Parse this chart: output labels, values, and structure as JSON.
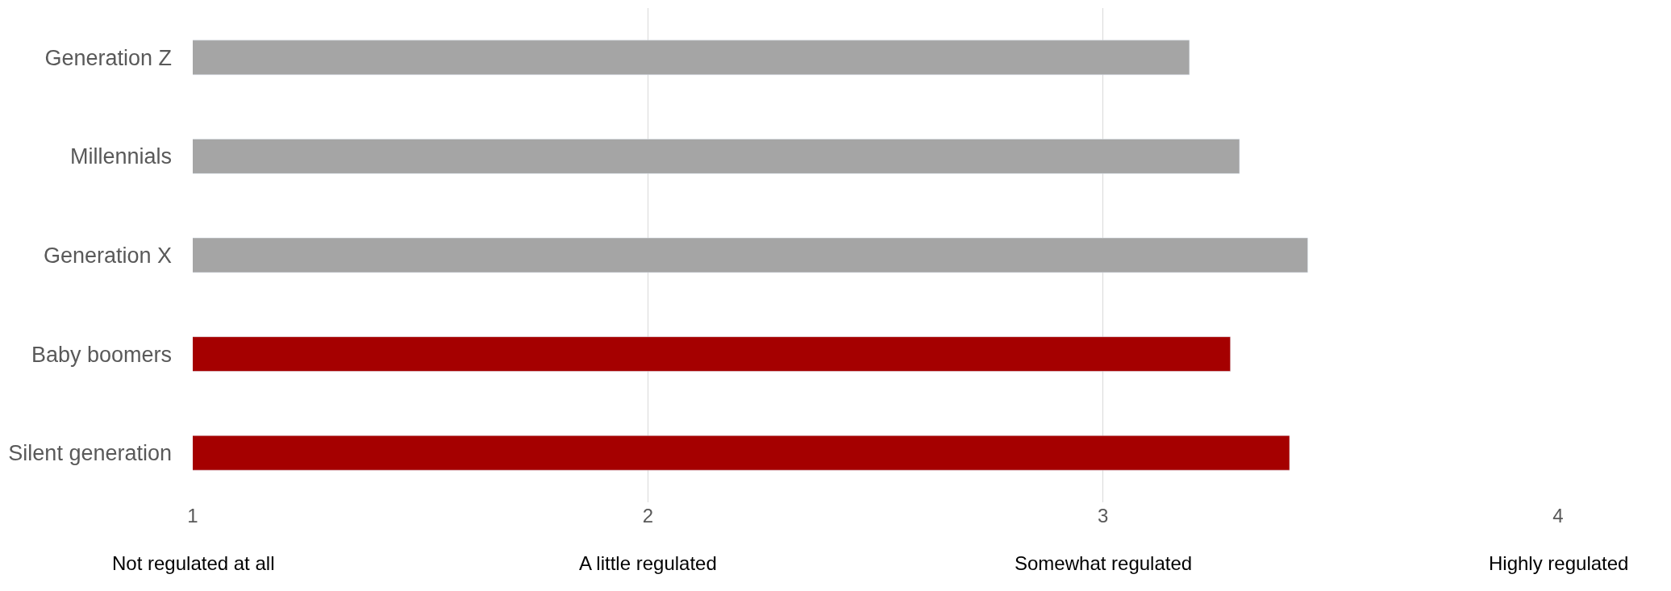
{
  "chart_data": {
    "type": "bar",
    "orientation": "horizontal",
    "categories": [
      "Generation Z",
      "Millennials",
      "Generation X",
      "Baby boomers",
      "Silent generation"
    ],
    "values": [
      3.19,
      3.3,
      3.45,
      3.28,
      3.41
    ],
    "colors": [
      "#a5a5a5",
      "#a5a5a5",
      "#a5a5a5",
      "#a50000",
      "#a50000"
    ],
    "xlim": [
      1,
      4
    ],
    "xticks": [
      1,
      2,
      3,
      4
    ],
    "annotations": [
      "Not regulated at all",
      "A little regulated",
      "Somewhat regulated",
      "Highly regulated"
    ],
    "grid": "x",
    "legend": false
  }
}
